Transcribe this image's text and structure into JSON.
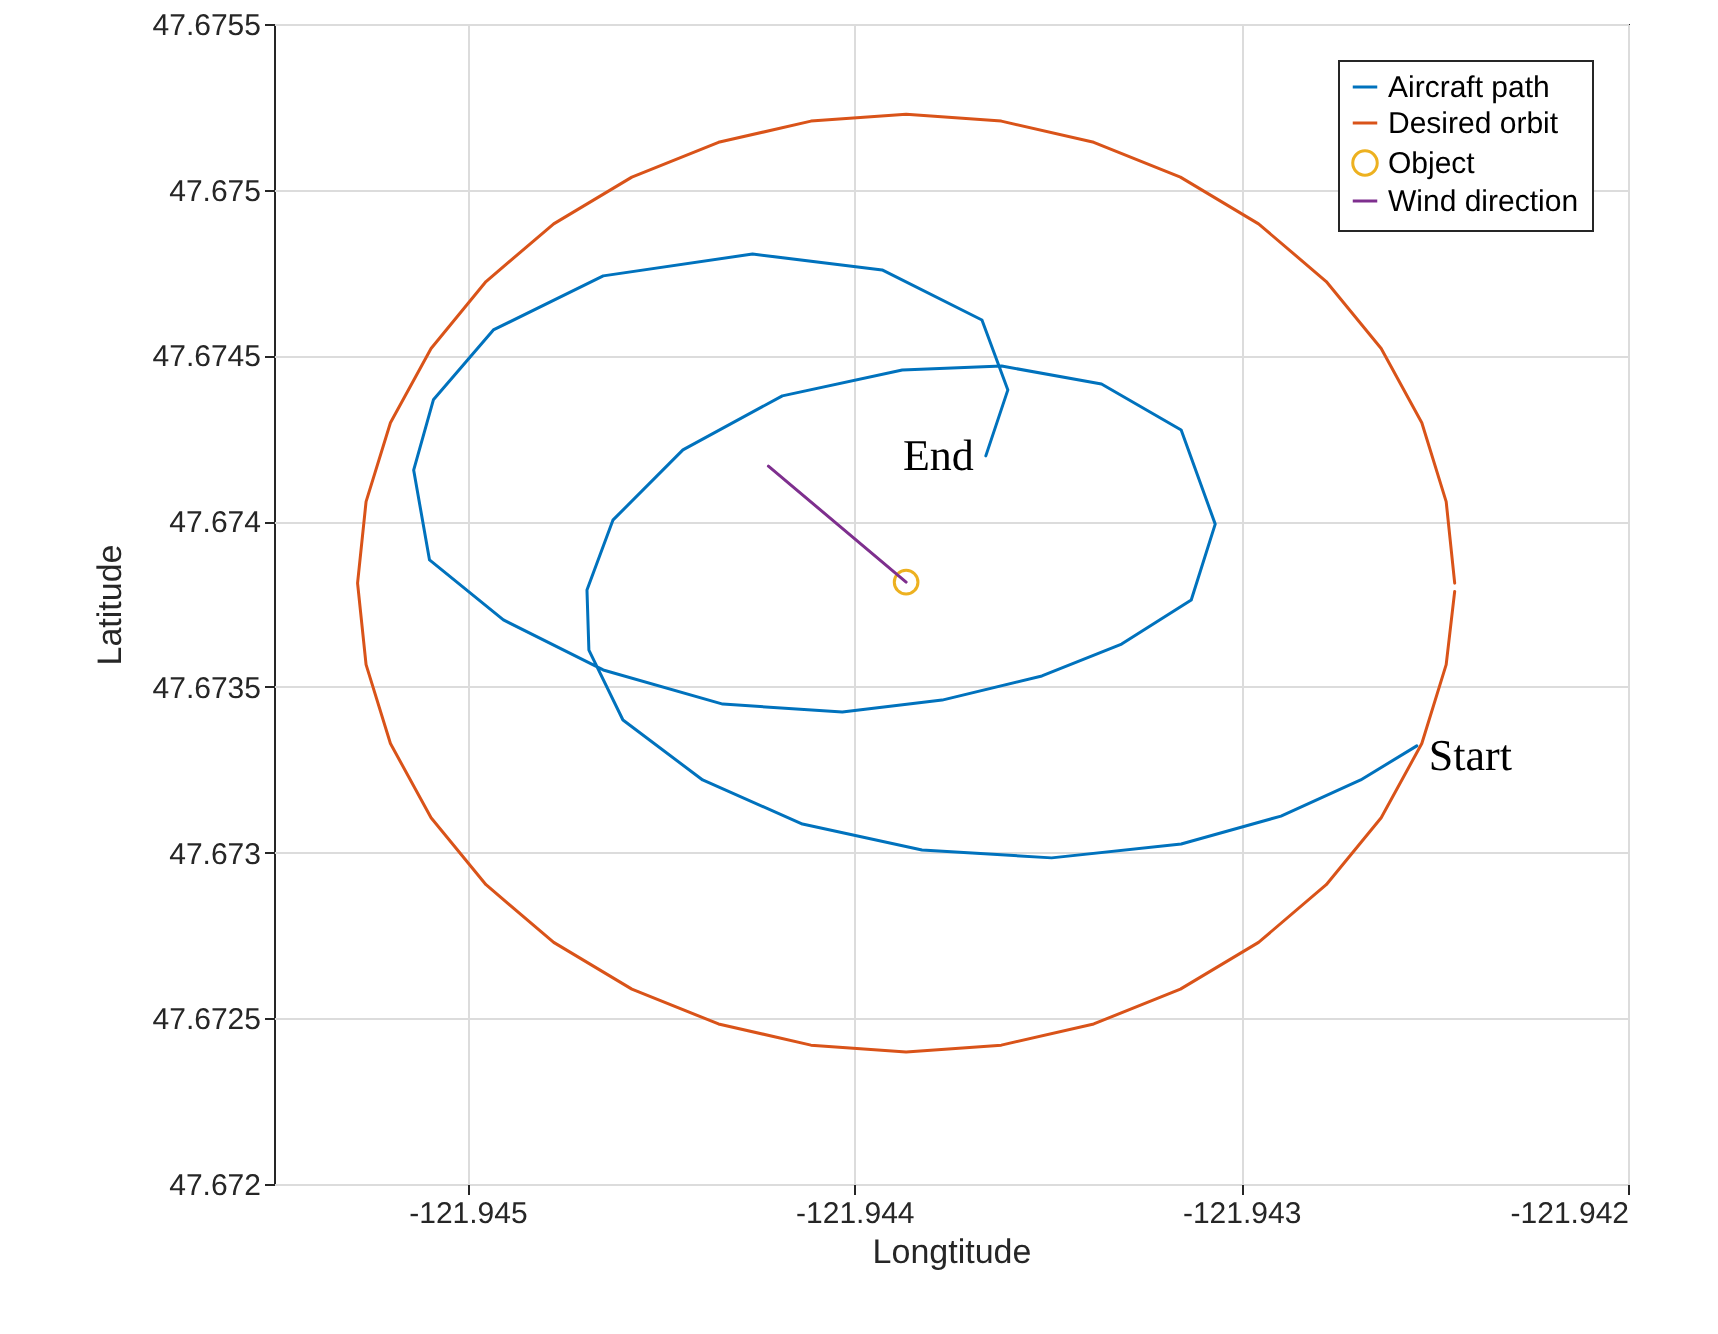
{
  "chart_data": {
    "type": "line",
    "xlabel": "Longtitude",
    "ylabel": "Latitude",
    "xlim": [
      -121.9455,
      -121.942
    ],
    "xticks": [
      -121.945,
      -121.944,
      -121.943,
      -121.942
    ],
    "ylim": [
      47.672,
      47.6755
    ],
    "yticks": [
      47.672,
      47.6725,
      47.673,
      47.6735,
      47.674,
      47.6745,
      47.675,
      47.6755
    ],
    "grid": true,
    "legend": "top right",
    "series": [
      {
        "name": "Aircraft path",
        "color": "#0072bd",
        "x": [
          -121.942546,
          -121.942691,
          -121.942897,
          -121.943155,
          -121.94349,
          -121.943825,
          -121.944134,
          -121.944392,
          -121.944598,
          -121.944686,
          -121.944691,
          -121.944624,
          -121.944443,
          -121.944186,
          -121.943876,
          -121.943619,
          -121.943361,
          -121.943155,
          -121.943067,
          -121.943129,
          -121.943309,
          -121.943515,
          -121.943773,
          -121.944031,
          -121.94434,
          -121.944649,
          -121.944907,
          -121.945098,
          -121.945139,
          -121.945088,
          -121.944933,
          -121.944649,
          -121.944263,
          -121.943928,
          -121.94367,
          -121.943603,
          -121.94366
        ],
        "values": [
          47.673322,
          47.673219,
          47.67311,
          47.673026,
          47.672984,
          47.673008,
          47.673086,
          47.673219,
          47.6734,
          47.673611,
          47.673792,
          47.674003,
          47.674215,
          47.674378,
          47.674456,
          47.674468,
          47.674414,
          47.674275,
          47.673991,
          47.673762,
          47.673629,
          47.673533,
          47.67346,
          47.673424,
          47.673448,
          47.673551,
          47.673702,
          47.673883,
          47.674154,
          47.674366,
          47.674577,
          47.67474,
          47.674806,
          47.674758,
          47.674607,
          47.674396,
          47.674197
        ]
      },
      {
        "name": "Desired orbit",
        "color": "#d95319",
        "x": [
          -121.942448,
          -121.94247,
          -121.942533,
          -121.942638,
          -121.94278,
          -121.942955,
          -121.943157,
          -121.943381,
          -121.94362,
          -121.943866,
          -121.944112,
          -121.944351,
          -121.944575,
          -121.944777,
          -121.944952,
          -121.945094,
          -121.945199,
          -121.945262,
          -121.945284,
          -121.945262,
          -121.945199,
          -121.945094,
          -121.944952,
          -121.944777,
          -121.944575,
          -121.944351,
          -121.944112,
          -121.943866,
          -121.94362,
          -121.943381,
          -121.943157,
          -121.942955,
          -121.94278,
          -121.942638,
          -121.942533,
          -121.94247,
          -121.942448
        ],
        "values": [
          47.673813,
          47.674059,
          47.674297,
          47.674521,
          47.674723,
          47.674897,
          47.675038,
          47.675143,
          47.675207,
          47.675228,
          47.675207,
          47.675143,
          47.675038,
          47.674897,
          47.674723,
          47.674521,
          47.674297,
          47.674059,
          47.673813,
          47.673567,
          47.673329,
          47.673105,
          47.672903,
          47.672729,
          47.672588,
          47.672483,
          47.672419,
          47.672398,
          47.672419,
          47.672483,
          47.672588,
          47.672729,
          47.672903,
          47.673105,
          47.673329,
          47.673567,
          47.673788
        ]
      },
      {
        "name": "Object",
        "type": "scatter",
        "marker": "circle",
        "color": "#edb120",
        "x": [
          -121.943866
        ],
        "values": [
          47.673816
        ]
      },
      {
        "name": "Wind direction",
        "color": "#7e2f8e",
        "x": [
          -121.943866,
          -121.944222
        ],
        "values": [
          47.673816,
          47.674166
        ]
      }
    ],
    "annotations": [
      {
        "text": "End",
        "x": -121.94366,
        "y": 47.674197
      },
      {
        "text": "Start",
        "x": -121.942546,
        "y": 47.673322
      }
    ]
  }
}
